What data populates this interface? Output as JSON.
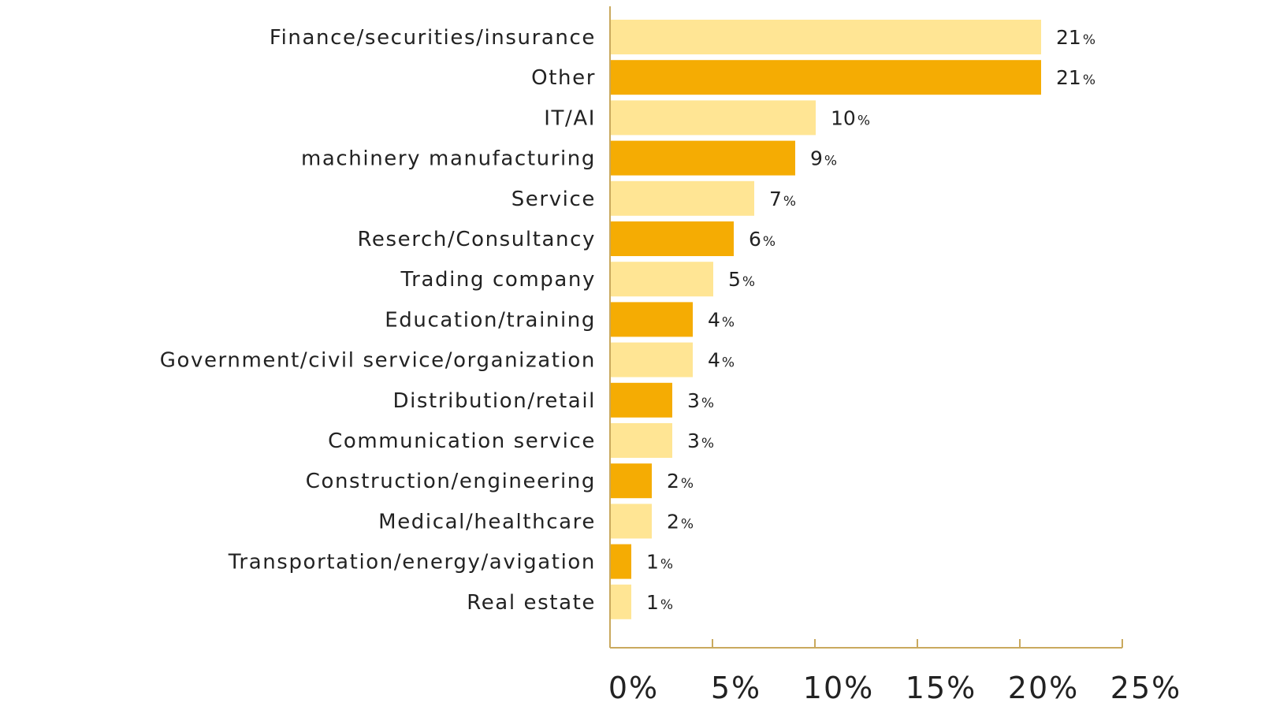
{
  "chart_data": {
    "type": "bar",
    "orientation": "horizontal",
    "categories": [
      "Finance/securities/insurance",
      "Other",
      "IT/AI",
      "machinery manufacturing",
      "Service",
      "Reserch/Consultancy",
      "Trading company",
      "Education/training",
      "Government/civil service/organization",
      "Distribution/retail",
      "Communication service",
      "Construction/engineering",
      "Medical/healthcare",
      "Transportation/energy/avigation",
      "Real estate"
    ],
    "values": [
      21,
      21,
      10,
      9,
      7,
      6,
      5,
      4,
      4,
      3,
      3,
      2,
      2,
      1,
      1
    ],
    "value_labels": [
      "21",
      "21",
      "10",
      "9",
      "7",
      "6",
      "5",
      "4",
      "4",
      "3",
      "3",
      "2",
      "2",
      "1",
      "1"
    ],
    "value_unit": "%",
    "xlim": [
      0,
      25
    ],
    "xticks": [
      0,
      5,
      10,
      15,
      20,
      25
    ],
    "xtick_labels": [
      "0%",
      "5%",
      "10%",
      "15%",
      "20%",
      "25%"
    ],
    "title": "",
    "xlabel": "",
    "ylabel": "",
    "grid": false,
    "legend": "none",
    "colors": {
      "light": "#FFE594",
      "dark": "#F5AC03",
      "axis": "#C9A95E"
    }
  }
}
